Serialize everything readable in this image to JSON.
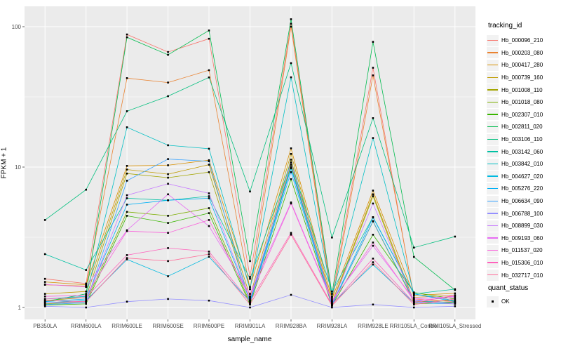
{
  "figure": {
    "background": "#FFFFFF",
    "panel_bg": "#EBEBEB",
    "grid_color": "#FFFFFF",
    "tick_text_color": "#4D4D4D",
    "tick_mark_color": "#333333"
  },
  "axes": {
    "x": {
      "title": "sample_name"
    },
    "y": {
      "title": "FPKM + 1",
      "tick_labels": [
        "1",
        "10",
        "100"
      ],
      "scale": "log10"
    }
  },
  "legend": {
    "tracking_title": "tracking_id",
    "quant_title": "quant_status",
    "quant_label": "OK",
    "key_fill": "#F2F2F2",
    "point_color": "#000000"
  },
  "chart_data": {
    "type": "line",
    "title": "",
    "xlabel": "sample_name",
    "ylabel": "FPKM + 1",
    "y_scale": "log10",
    "ylim": [
      1,
      120
    ],
    "y_ticks": [
      1,
      10,
      100
    ],
    "y_minor_ticks": [
      3.1623,
      31.623
    ],
    "grid": true,
    "legend_position": "right",
    "point_shape": "filled-square",
    "point_color": "#000000",
    "categories": [
      "PB350LA",
      "RRIM600LA",
      "RRIM600LE",
      "RRIM600SE",
      "RRIM600PE",
      "RRIM901LA",
      "RRIM928BA",
      "RRIM928LA",
      "RRIM928LE",
      "RRII105LA_Control",
      "RRII105LA_Stressed"
    ],
    "series": [
      {
        "name": "Hb_000096_210",
        "color": "#F8766D",
        "values": [
          1.6,
          1.48,
          88,
          66,
          82,
          1.65,
          105,
          1.18,
          51,
          1.15,
          1.1
        ]
      },
      {
        "name": "Hb_000203_080",
        "color": "#EA8331",
        "values": [
          1.45,
          1.42,
          43,
          40,
          49,
          1.35,
          100,
          1.1,
          45,
          1.18,
          1.22
        ]
      },
      {
        "name": "Hb_000417_280",
        "color": "#D89000",
        "values": [
          1.52,
          1.45,
          10.2,
          10.3,
          11.2,
          1.4,
          13.6,
          1.15,
          6.8,
          1.22,
          1.26
        ]
      },
      {
        "name": "Hb_000739_160",
        "color": "#C09B00",
        "values": [
          1.25,
          1.3,
          9.6,
          8.9,
          10.4,
          1.2,
          12.4,
          1.08,
          6.4,
          1.1,
          1.12
        ]
      },
      {
        "name": "Hb_001008_110",
        "color": "#A3A500",
        "values": [
          1.12,
          1.18,
          9.0,
          8.4,
          9.2,
          1.12,
          11.3,
          1.05,
          6.2,
          1.06,
          1.08
        ]
      },
      {
        "name": "Hb_001018_080",
        "color": "#7CAE00",
        "values": [
          1.06,
          1.1,
          4.8,
          4.5,
          5.1,
          1.08,
          10.4,
          1.04,
          4.1,
          1.1,
          1.09
        ]
      },
      {
        "name": "Hb_002307_010",
        "color": "#39B600",
        "values": [
          1.04,
          1.06,
          4.5,
          4.0,
          4.7,
          1.05,
          8.2,
          1.03,
          3.3,
          1.28,
          1.15
        ]
      },
      {
        "name": "Hb_002811_020",
        "color": "#00BB4E",
        "values": [
          1.1,
          1.25,
          84,
          63,
          94,
          2.14,
          113,
          1.25,
          78,
          2.29,
          1.33
        ]
      },
      {
        "name": "Hb_003106_110",
        "color": "#00BF7D",
        "values": [
          4.2,
          6.9,
          25,
          32,
          43.5,
          6.7,
          55,
          3.15,
          22.3,
          2.67,
          3.2
        ]
      },
      {
        "name": "Hb_003142_060",
        "color": "#00C1A3",
        "values": [
          2.4,
          1.85,
          6.0,
          5.8,
          6.2,
          1.6,
          10.8,
          1.3,
          4.4,
          1.25,
          1.35
        ]
      },
      {
        "name": "Hb_003842_010",
        "color": "#00BFC4",
        "values": [
          1.15,
          1.2,
          19.2,
          14.3,
          13.5,
          1.35,
          43.6,
          1.2,
          16.1,
          1.25,
          1.12
        ]
      },
      {
        "name": "Hb_004627_020",
        "color": "#00BAE0",
        "values": [
          1.08,
          1.12,
          2.2,
          1.67,
          2.3,
          1.1,
          9.8,
          1.06,
          2.02,
          1.08,
          1.06
        ]
      },
      {
        "name": "Hb_005276_220",
        "color": "#00B0F6",
        "values": [
          1.1,
          1.15,
          5.4,
          5.8,
          6.0,
          1.12,
          10.0,
          1.05,
          4.37,
          1.25,
          1.1
        ]
      },
      {
        "name": "Hb_006634_090",
        "color": "#35A2FF",
        "values": [
          1.05,
          1.08,
          8.0,
          11.4,
          11.0,
          1.08,
          9.2,
          1.04,
          4.12,
          1.12,
          1.08
        ]
      },
      {
        "name": "Hb_006788_100",
        "color": "#9590FF",
        "values": [
          1.02,
          1.0,
          1.1,
          1.15,
          1.12,
          1.0,
          1.23,
          1.0,
          1.05,
          1.0,
          1.02
        ]
      },
      {
        "name": "Hb_008899_030",
        "color": "#C77CFF",
        "values": [
          1.08,
          1.1,
          6.3,
          7.6,
          6.5,
          1.15,
          10.8,
          1.06,
          5.5,
          1.1,
          1.06
        ]
      },
      {
        "name": "Hb_009193_060",
        "color": "#E76BF3",
        "values": [
          1.46,
          1.4,
          3.55,
          6.4,
          3.8,
          1.25,
          5.6,
          1.12,
          2.75,
          1.15,
          1.2
        ]
      },
      {
        "name": "Hb_011537_020",
        "color": "#FA62DB",
        "values": [
          1.2,
          1.22,
          3.5,
          3.4,
          4.2,
          1.18,
          5.5,
          1.1,
          2.9,
          1.12,
          1.18
        ]
      },
      {
        "name": "Hb_015306_010",
        "color": "#FF62BC",
        "values": [
          1.15,
          1.18,
          2.36,
          2.65,
          2.5,
          1.1,
          3.4,
          1.05,
          2.23,
          1.08,
          1.22
        ]
      },
      {
        "name": "Hb_032717_010",
        "color": "#FF6A98",
        "values": [
          1.12,
          1.1,
          2.25,
          2.14,
          2.4,
          1.05,
          3.3,
          1.03,
          2.1,
          1.05,
          1.15
        ]
      }
    ]
  }
}
